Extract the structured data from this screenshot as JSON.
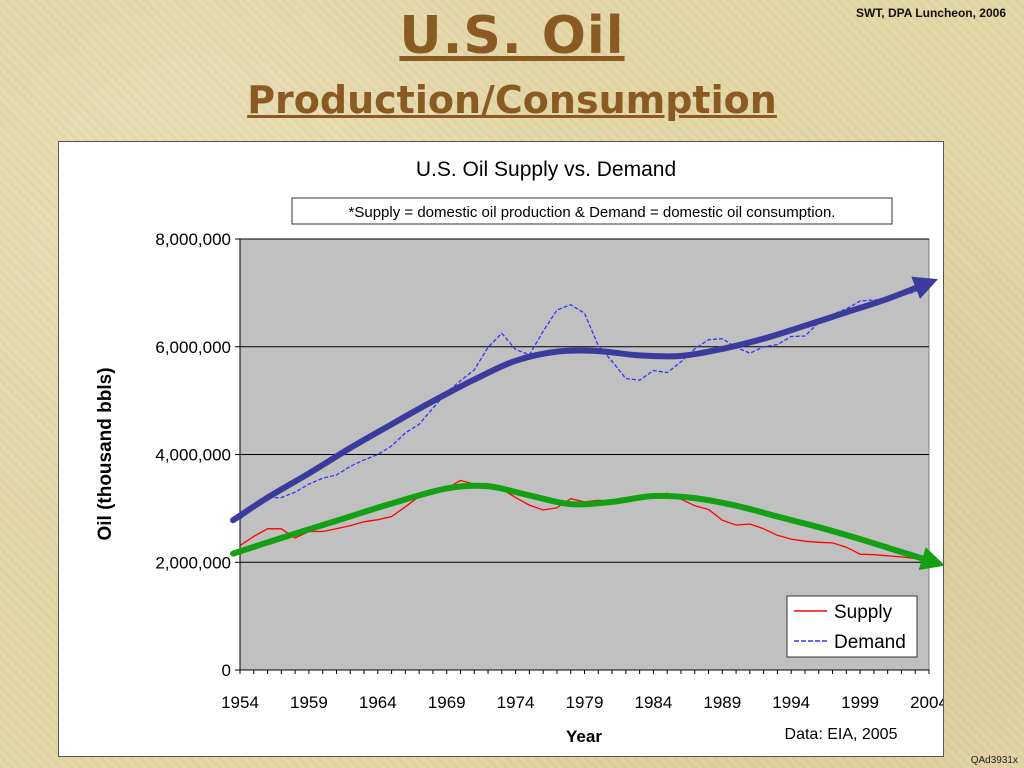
{
  "slide": {
    "title_line1": "U.S. Oil",
    "title_line2": "Production/Consumption",
    "credit": "SWT, DPA Luncheon, 2006",
    "code": "QAd3931x"
  },
  "chart_data": {
    "type": "line",
    "title": "U.S. Oil Supply vs. Demand",
    "annotation": "*Supply = domestic oil production & Demand = domestic oil consumption.",
    "source": "Data: EIA, 2005",
    "xlabel": "Year",
    "ylabel": "Oil (thousand bbls)",
    "xlim": [
      1954,
      2004
    ],
    "ylim": [
      0,
      8000000
    ],
    "x_ticks": [
      1954,
      1959,
      1964,
      1969,
      1974,
      1979,
      1984,
      1989,
      1994,
      1999,
      2004
    ],
    "y_ticks": [
      0,
      2000000,
      4000000,
      6000000,
      8000000
    ],
    "y_tick_labels": [
      "0",
      "2,000,000",
      "4,000,000",
      "6,000,000",
      "8,000,000"
    ],
    "grid": "horizontal",
    "plot_background": "#c0c0c0",
    "legend_position": "bottom-right",
    "series": [
      {
        "name": "Supply",
        "color": "#ff0000",
        "style": "solid",
        "x": [
          1954,
          1955,
          1956,
          1957,
          1958,
          1959,
          1960,
          1961,
          1962,
          1963,
          1964,
          1965,
          1966,
          1967,
          1968,
          1969,
          1970,
          1971,
          1972,
          1973,
          1974,
          1975,
          1976,
          1977,
          1978,
          1979,
          1980,
          1981,
          1982,
          1983,
          1984,
          1985,
          1986,
          1987,
          1988,
          1989,
          1990,
          1991,
          1992,
          1993,
          1994,
          1995,
          1996,
          1997,
          1998,
          1999,
          2000,
          2001,
          2002,
          2003,
          2004
        ],
        "values": [
          2310000,
          2480000,
          2620000,
          2620000,
          2450000,
          2570000,
          2570000,
          2620000,
          2680000,
          2750000,
          2790000,
          2850000,
          3030000,
          3220000,
          3330000,
          3370000,
          3520000,
          3450000,
          3460000,
          3360000,
          3200000,
          3060000,
          2970000,
          3010000,
          3180000,
          3120000,
          3150000,
          3130000,
          3160000,
          3170000,
          3250000,
          3280000,
          3170000,
          3050000,
          2980000,
          2780000,
          2690000,
          2710000,
          2620000,
          2500000,
          2430000,
          2390000,
          2370000,
          2360000,
          2280000,
          2150000,
          2140000,
          2120000,
          2100000,
          2070000,
          1990000
        ]
      },
      {
        "name": "Demand",
        "color": "#3333ff",
        "style": "dashed",
        "x": [
          1954,
          1955,
          1956,
          1957,
          1958,
          1959,
          1960,
          1961,
          1962,
          1963,
          1964,
          1965,
          1966,
          1967,
          1968,
          1969,
          1970,
          1971,
          1972,
          1973,
          1974,
          1975,
          1976,
          1977,
          1978,
          1979,
          1980,
          1981,
          1982,
          1983,
          1984,
          1985,
          1986,
          1987,
          1988,
          1989,
          1990,
          1991,
          1992,
          1993,
          1994,
          1995,
          1996,
          1997,
          1998,
          1999,
          2000,
          2001,
          2002,
          2003,
          2004
        ],
        "values": [
          2800000,
          3000000,
          3200000,
          3200000,
          3300000,
          3450000,
          3560000,
          3620000,
          3780000,
          3900000,
          4000000,
          4160000,
          4400000,
          4560000,
          4860000,
          5150000,
          5370000,
          5570000,
          5990000,
          6250000,
          5950000,
          5850000,
          6290000,
          6680000,
          6780000,
          6620000,
          6020000,
          5730000,
          5410000,
          5380000,
          5560000,
          5520000,
          5720000,
          5960000,
          6130000,
          6150000,
          5990000,
          5880000,
          6000000,
          6040000,
          6190000,
          6200000,
          6450000,
          6600000,
          6700000,
          6850000,
          6870000,
          6870000,
          6950000,
          7020000,
          7230000
        ]
      }
    ],
    "trend_lines": [
      {
        "name": "",
        "color": "#3b3b9e",
        "x": [
          1953.5,
          1956,
          1959,
          1962,
          1965,
          1968,
          1971,
          1974,
          1977,
          1980,
          1983,
          1986,
          1989,
          1992,
          1995,
          1998,
          2001,
          2004
        ],
        "values": [
          2780000,
          3200000,
          3650000,
          4120000,
          4560000,
          4990000,
          5390000,
          5740000,
          5910000,
          5920000,
          5840000,
          5830000,
          5960000,
          6150000,
          6390000,
          6640000,
          6890000,
          7190000
        ]
      },
      {
        "name": "",
        "color": "#14a014",
        "x": [
          1953.5,
          1957,
          1961,
          1965,
          1969,
          1972,
          1975,
          1978,
          1981,
          1984,
          1987,
          1990,
          1993,
          1996,
          1999,
          2002,
          2004.5
        ],
        "values": [
          2160000,
          2450000,
          2770000,
          3090000,
          3370000,
          3410000,
          3240000,
          3080000,
          3120000,
          3230000,
          3190000,
          3050000,
          2850000,
          2650000,
          2430000,
          2190000,
          1990000
        ]
      }
    ]
  }
}
